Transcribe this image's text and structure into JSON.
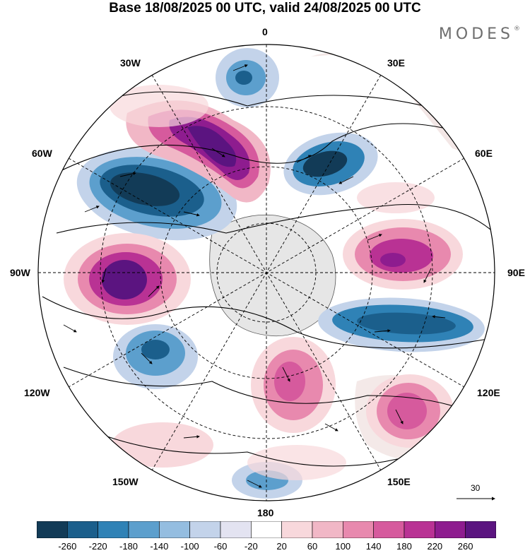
{
  "title": "Base 18/08/2025 00 UTC, valid 24/08/2025 00 UTC",
  "brand": {
    "text": "MODES",
    "mark": "®"
  },
  "labels": {
    "top": "0",
    "bottom": "180",
    "left": "90W",
    "right": "90E",
    "w30": "30W",
    "e30": "30E",
    "w60": "60W",
    "e60": "60E",
    "w120": "120W",
    "e120": "120E",
    "w150": "150W",
    "e150": "150E"
  },
  "vector_reference": "30",
  "colorbar": {
    "ticks": [
      "-260",
      "-220",
      "-180",
      "-140",
      "-100",
      "-60",
      "-20",
      "20",
      "60",
      "100",
      "140",
      "180",
      "220",
      "260"
    ],
    "colors": [
      "#123b57",
      "#1b5f8c",
      "#2f82b6",
      "#5c9fcd",
      "#94bde0",
      "#c3d3ea",
      "#e3e3f1",
      "#ffffff",
      "#f8d8dc",
      "#f1b7c6",
      "#e889ae",
      "#d65a9d",
      "#b93294",
      "#8e1c8f",
      "#5b1480"
    ]
  },
  "colors": {
    "map_background": "#ffffff",
    "antarctica": "#e6e6e6",
    "land_outline": "#555555"
  }
}
